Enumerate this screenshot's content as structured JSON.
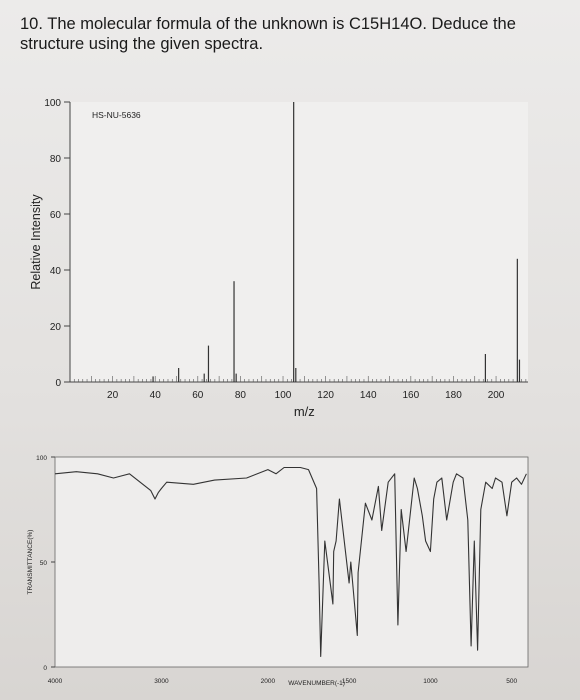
{
  "question": {
    "number": "10.",
    "text": "The molecular formula of the unknown is C15H14O. Deduce the structure using the given spectra."
  },
  "chart_data": [
    {
      "type": "bar",
      "subtype": "mass-spectrum",
      "title": "HS-NU-5636",
      "xlabel": "m/z",
      "ylabel": "Relative Intensity",
      "xlim": [
        0,
        215
      ],
      "ylim": [
        0,
        100
      ],
      "xticks": [
        20,
        40,
        60,
        80,
        100,
        120,
        140,
        160,
        180,
        200
      ],
      "yticks": [
        0,
        20,
        40,
        60,
        80,
        100
      ],
      "grid": false,
      "peaks": [
        {
          "x": 39,
          "y": 2
        },
        {
          "x": 51,
          "y": 5
        },
        {
          "x": 63,
          "y": 3
        },
        {
          "x": 65,
          "y": 13
        },
        {
          "x": 77,
          "y": 36
        },
        {
          "x": 78,
          "y": 3
        },
        {
          "x": 105,
          "y": 100
        },
        {
          "x": 106,
          "y": 5
        },
        {
          "x": 195,
          "y": 10
        },
        {
          "x": 210,
          "y": 44
        },
        {
          "x": 211,
          "y": 8
        }
      ],
      "color": "#333333"
    },
    {
      "type": "line",
      "subtype": "ir-spectrum",
      "xlabel": "WAVENUMBER(-1)",
      "ylabel": "TRANSMITTANCE(%)",
      "xlim": [
        4000,
        400
      ],
      "ylim": [
        0,
        100
      ],
      "xticks": [
        4000,
        3000,
        2000,
        1500,
        1000,
        500
      ],
      "yticks": [
        0,
        50,
        100
      ],
      "grid": false,
      "x": [
        4000,
        3800,
        3600,
        3450,
        3300,
        3100,
        3060,
        3030,
        3000,
        2950,
        2700,
        2500,
        2200,
        2000,
        1950,
        1900,
        1800,
        1750,
        1700,
        1685,
        1675,
        1650,
        1600,
        1595,
        1580,
        1560,
        1500,
        1490,
        1450,
        1445,
        1400,
        1360,
        1320,
        1300,
        1260,
        1220,
        1200,
        1180,
        1150,
        1100,
        1080,
        1050,
        1030,
        1000,
        980,
        960,
        930,
        900,
        860,
        840,
        800,
        770,
        750,
        730,
        710,
        690,
        660,
        620,
        600,
        560,
        530,
        500,
        470,
        440,
        410
      ],
      "y": [
        92,
        93,
        92,
        90,
        92,
        84,
        80,
        83,
        85,
        88,
        87,
        89,
        90,
        94,
        92,
        95,
        95,
        94,
        85,
        40,
        5,
        60,
        30,
        55,
        60,
        80,
        40,
        50,
        15,
        45,
        78,
        70,
        86,
        65,
        88,
        92,
        20,
        75,
        55,
        90,
        85,
        72,
        60,
        55,
        80,
        88,
        90,
        70,
        88,
        92,
        90,
        70,
        10,
        60,
        8,
        75,
        88,
        85,
        90,
        88,
        72,
        88,
        90,
        87,
        92
      ],
      "color": "#333333"
    }
  ]
}
